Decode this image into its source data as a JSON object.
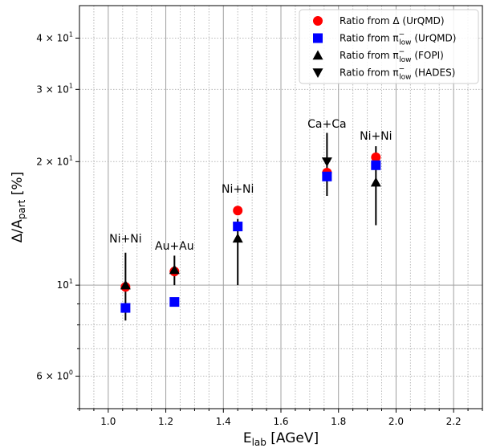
{
  "chart_data": {
    "type": "scatter",
    "title": "",
    "xlabel": "E",
    "xlabel_sub": "lab",
    "xlabel_unit": " [AGeV]",
    "ylabel": "Δ/A",
    "ylabel_sub": "part",
    "ylabel_unit": " [%]",
    "xlim": [
      0.9,
      2.3
    ],
    "ylim": [
      5.0,
      48.0
    ],
    "yscale": "log",
    "grid": true,
    "legend_position": "top-right",
    "x_ticks": [
      {
        "value": 1.0,
        "label": "1.0"
      },
      {
        "value": 1.2,
        "label": "1.2"
      },
      {
        "value": 1.4,
        "label": "1.4"
      },
      {
        "value": 1.6,
        "label": "1.6"
      },
      {
        "value": 1.8,
        "label": "1.8"
      },
      {
        "value": 2.0,
        "label": "2.0"
      },
      {
        "value": 2.2,
        "label": "2.2"
      }
    ],
    "y_ticks": [
      {
        "value": 6,
        "base": "6",
        "mid": " × ",
        "ten": "10",
        "exp": "0"
      },
      {
        "value": 10,
        "base": "",
        "mid": "",
        "ten": "10",
        "exp": "1"
      },
      {
        "value": 20,
        "base": "2",
        "mid": " × ",
        "ten": "10",
        "exp": "1"
      },
      {
        "value": 30,
        "base": "3",
        "mid": " × ",
        "ten": "10",
        "exp": "1"
      },
      {
        "value": 40,
        "base": "4",
        "mid": " × ",
        "ten": "10",
        "exp": "1"
      }
    ],
    "y_minor_ticks": [
      7,
      8,
      9
    ],
    "series": [
      {
        "label_main": "Ratio from Δ (UrQMD)",
        "marker": "circle",
        "color": "#ff0000",
        "points": [
          {
            "x": 1.06,
            "y": 9.9
          },
          {
            "x": 1.23,
            "y": 10.8
          },
          {
            "x": 1.45,
            "y": 15.2
          },
          {
            "x": 1.76,
            "y": 18.8
          },
          {
            "x": 1.93,
            "y": 20.5
          }
        ]
      },
      {
        "label_main": "Ratio from π",
        "label_sup": "−",
        "label_sub": "low",
        "label_tail": " (UrQMD)",
        "marker": "square",
        "color": "#0000ff",
        "points": [
          {
            "x": 1.06,
            "y": 8.8
          },
          {
            "x": 1.23,
            "y": 9.1
          },
          {
            "x": 1.45,
            "y": 13.9
          },
          {
            "x": 1.76,
            "y": 18.4
          },
          {
            "x": 1.93,
            "y": 19.6
          }
        ]
      },
      {
        "label_main": "Ratio from π",
        "label_sup": "−",
        "label_sub": "low",
        "label_tail": " (FOPI)",
        "marker": "triangle-up",
        "color": "#000000",
        "points": [
          {
            "x": 1.06,
            "y": 10.0,
            "ylo": 8.2,
            "yhi": 12.0
          },
          {
            "x": 1.23,
            "y": 10.9,
            "ylo": 10.0,
            "yhi": 11.8
          },
          {
            "x": 1.45,
            "y": 13.0,
            "ylo": 10.0,
            "yhi": 14.5
          },
          {
            "x": 1.93,
            "y": 17.8,
            "ylo": 14.0,
            "yhi": 21.8
          }
        ]
      },
      {
        "label_main": "Ratio from π",
        "label_sup": "−",
        "label_sub": "low",
        "label_tail": " (HADES)",
        "marker": "triangle-down",
        "color": "#000000",
        "points": [
          {
            "x": 1.76,
            "y": 20.0,
            "ylo": 16.5,
            "yhi": 23.5
          }
        ]
      }
    ],
    "annotations": [
      {
        "text": "Ni+Ni",
        "x": 1.06,
        "y": 12.7
      },
      {
        "text": "Au+Au",
        "x": 1.23,
        "y": 12.2
      },
      {
        "text": "Ni+Ni",
        "x": 1.45,
        "y": 16.8
      },
      {
        "text": "Ca+Ca",
        "x": 1.76,
        "y": 24.2
      },
      {
        "text": "Ni+Ni",
        "x": 1.93,
        "y": 22.6
      }
    ]
  }
}
